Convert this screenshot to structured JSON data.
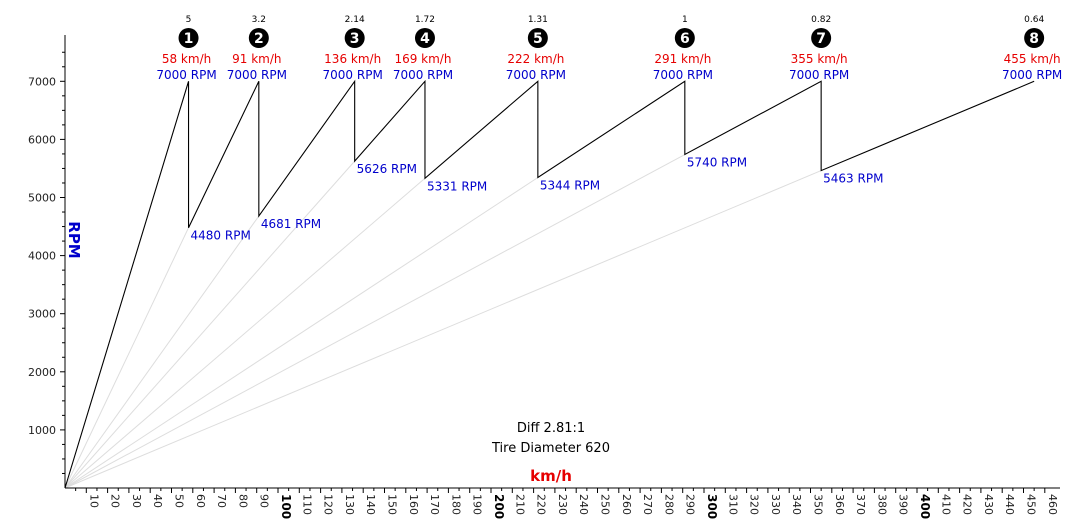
{
  "chart_data": {
    "type": "line",
    "xlabel": "km/h",
    "ylabel": "RPM",
    "xlim": [
      0,
      460
    ],
    "ylim": [
      0,
      7000
    ],
    "x_ticks": [
      10,
      20,
      30,
      40,
      50,
      60,
      70,
      80,
      90,
      100,
      110,
      120,
      130,
      140,
      150,
      160,
      170,
      180,
      190,
      200,
      210,
      220,
      230,
      240,
      250,
      260,
      270,
      280,
      290,
      300,
      310,
      320,
      330,
      340,
      350,
      360,
      370,
      380,
      390,
      400,
      410,
      420,
      430,
      440,
      450,
      460
    ],
    "x_major_ticks": [
      100,
      200,
      300,
      400
    ],
    "y_ticks": [
      1000,
      2000,
      3000,
      4000,
      5000,
      6000,
      7000
    ],
    "shift_rpm": 7000,
    "gears": [
      {
        "gear": 1,
        "ratio": "5",
        "top_speed": 58,
        "speed_label": "58 km/h",
        "rpm_label": "7000 RPM",
        "drop_rpm": 4480,
        "drop_label": "4480 RPM"
      },
      {
        "gear": 2,
        "ratio": "3.2",
        "top_speed": 91,
        "speed_label": "91 km/h",
        "rpm_label": "7000 RPM",
        "drop_rpm": 4681,
        "drop_label": "4681 RPM"
      },
      {
        "gear": 3,
        "ratio": "2.14",
        "top_speed": 136,
        "speed_label": "136 km/h",
        "rpm_label": "7000 RPM",
        "drop_rpm": 5626,
        "drop_label": "5626 RPM"
      },
      {
        "gear": 4,
        "ratio": "1.72",
        "top_speed": 169,
        "speed_label": "169 km/h",
        "rpm_label": "7000 RPM",
        "drop_rpm": 5331,
        "drop_label": "5331 RPM"
      },
      {
        "gear": 5,
        "ratio": "1.31",
        "top_speed": 222,
        "speed_label": "222 km/h",
        "rpm_label": "7000 RPM",
        "drop_rpm": 5344,
        "drop_label": "5344 RPM"
      },
      {
        "gear": 6,
        "ratio": "1",
        "top_speed": 291,
        "speed_label": "291 km/h",
        "rpm_label": "7000 RPM",
        "drop_rpm": 5740,
        "drop_label": "5740 RPM"
      },
      {
        "gear": 7,
        "ratio": "0.82",
        "top_speed": 355,
        "speed_label": "355 km/h",
        "rpm_label": "7000 RPM",
        "drop_rpm": 5463,
        "drop_label": "5463 RPM"
      },
      {
        "gear": 8,
        "ratio": "0.64",
        "top_speed": 455,
        "speed_label": "455 km/h",
        "rpm_label": "7000 RPM",
        "drop_rpm": null,
        "drop_label": ""
      }
    ],
    "annotations": {
      "diff": "Diff 2.81:1",
      "tire": "Tire Diameter 620"
    },
    "colors": {
      "speed": "#e60000",
      "rpm": "#0000cc",
      "line": "#000000",
      "guide": "#dddddd",
      "gear_badge": "#000000"
    }
  }
}
